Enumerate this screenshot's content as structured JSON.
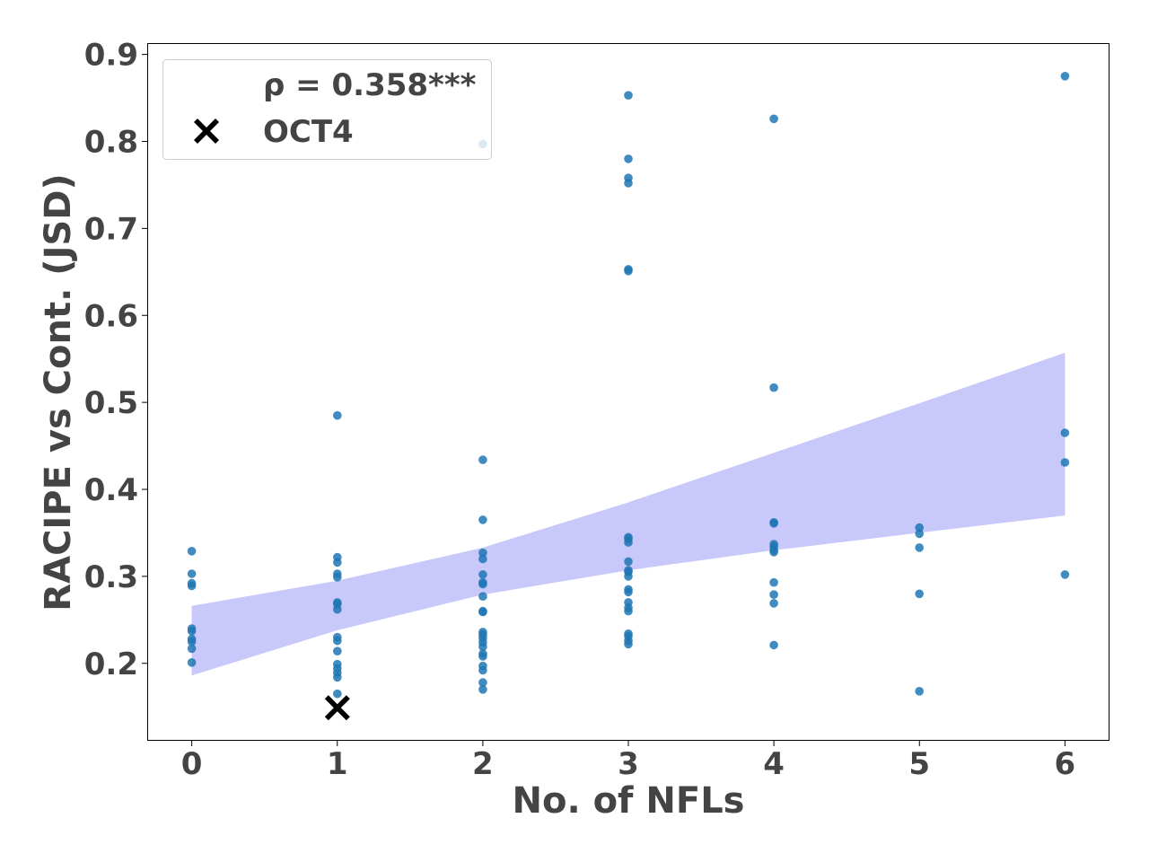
{
  "chart_data": {
    "type": "scatter",
    "xlabel": "No. of NFLs",
    "ylabel": "RACIPE vs Cont. (JSD)",
    "xlim": [
      -0.3,
      6.3
    ],
    "ylim": [
      0.112,
      0.912
    ],
    "x_ticks": [
      "0",
      "1",
      "2",
      "3",
      "4",
      "5",
      "6"
    ],
    "y_ticks": [
      "0.2",
      "0.3",
      "0.4",
      "0.5",
      "0.6",
      "0.7",
      "0.8",
      "0.9"
    ],
    "grid": false,
    "legend_position": "top-left",
    "legend": {
      "correlation_label": "ρ = 0.358***",
      "highlight_label": "OCT4"
    },
    "colors": {
      "points": "#1f77b4",
      "band": "#c8c8fa",
      "highlight": "#000000",
      "text": "#444444"
    },
    "confidence_band": {
      "x": [
        0,
        1,
        2,
        3,
        4,
        5,
        6
      ],
      "upper": [
        0.266,
        0.295,
        0.333,
        0.385,
        0.442,
        0.499,
        0.557
      ],
      "lower": [
        0.186,
        0.238,
        0.279,
        0.307,
        0.33,
        0.35,
        0.37
      ]
    },
    "series": [
      {
        "points": [
          [
            0,
            0.329
          ],
          [
            0,
            0.303
          ],
          [
            0,
            0.292
          ],
          [
            0,
            0.289
          ],
          [
            0,
            0.24
          ],
          [
            0,
            0.237
          ],
          [
            0,
            0.228
          ],
          [
            0,
            0.225
          ],
          [
            0,
            0.217
          ],
          [
            0,
            0.201
          ],
          [
            1,
            0.485
          ],
          [
            1,
            0.322
          ],
          [
            1,
            0.316
          ],
          [
            1,
            0.303
          ],
          [
            1,
            0.299
          ],
          [
            1,
            0.27
          ],
          [
            1,
            0.268
          ],
          [
            1,
            0.262
          ],
          [
            1,
            0.23
          ],
          [
            1,
            0.226
          ],
          [
            1,
            0.214
          ],
          [
            1,
            0.199
          ],
          [
            1,
            0.194
          ],
          [
            1,
            0.189
          ],
          [
            1,
            0.184
          ],
          [
            1,
            0.165
          ],
          [
            2,
            0.797
          ],
          [
            2,
            0.434
          ],
          [
            2,
            0.365
          ],
          [
            2,
            0.327
          ],
          [
            2,
            0.32
          ],
          [
            2,
            0.302
          ],
          [
            2,
            0.293
          ],
          [
            2,
            0.291
          ],
          [
            2,
            0.277
          ],
          [
            2,
            0.26
          ],
          [
            2,
            0.259
          ],
          [
            2,
            0.236
          ],
          [
            2,
            0.233
          ],
          [
            2,
            0.229
          ],
          [
            2,
            0.224
          ],
          [
            2,
            0.219
          ],
          [
            2,
            0.211
          ],
          [
            2,
            0.208
          ],
          [
            2,
            0.197
          ],
          [
            2,
            0.192
          ],
          [
            2,
            0.178
          ],
          [
            2,
            0.17
          ],
          [
            3,
            0.853
          ],
          [
            3,
            0.78
          ],
          [
            3,
            0.758
          ],
          [
            3,
            0.752
          ],
          [
            3,
            0.653
          ],
          [
            3,
            0.651
          ],
          [
            3,
            0.345
          ],
          [
            3,
            0.343
          ],
          [
            3,
            0.339
          ],
          [
            3,
            0.317
          ],
          [
            3,
            0.307
          ],
          [
            3,
            0.305
          ],
          [
            3,
            0.3
          ],
          [
            3,
            0.285
          ],
          [
            3,
            0.282
          ],
          [
            3,
            0.27
          ],
          [
            3,
            0.264
          ],
          [
            3,
            0.26
          ],
          [
            3,
            0.234
          ],
          [
            3,
            0.231
          ],
          [
            3,
            0.226
          ],
          [
            3,
            0.222
          ],
          [
            4,
            0.826
          ],
          [
            4,
            0.517
          ],
          [
            4,
            0.362
          ],
          [
            4,
            0.361
          ],
          [
            4,
            0.337
          ],
          [
            4,
            0.334
          ],
          [
            4,
            0.33
          ],
          [
            4,
            0.328
          ],
          [
            4,
            0.293
          ],
          [
            4,
            0.279
          ],
          [
            4,
            0.269
          ],
          [
            4,
            0.221
          ],
          [
            5,
            0.356
          ],
          [
            5,
            0.349
          ],
          [
            5,
            0.333
          ],
          [
            5,
            0.28
          ],
          [
            5,
            0.168
          ],
          [
            6,
            0.875
          ],
          [
            6,
            0.465
          ],
          [
            6,
            0.431
          ],
          [
            6,
            0.302
          ]
        ]
      }
    ],
    "highlight": {
      "label": "OCT4",
      "x": 1,
      "y": 0.149
    }
  }
}
